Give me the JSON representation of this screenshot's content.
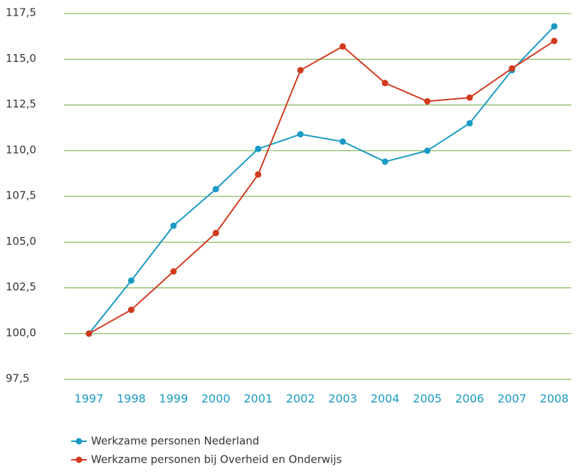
{
  "chart_data": {
    "type": "line",
    "categories": [
      "1997",
      "1998",
      "1999",
      "2000",
      "2001",
      "2002",
      "2003",
      "2004",
      "2005",
      "2006",
      "2007",
      "2008"
    ],
    "series": [
      {
        "name": "Werkzame personen Nederland",
        "color": "#1a9ac4",
        "values": [
          100.0,
          102.9,
          105.9,
          107.9,
          110.1,
          110.9,
          110.5,
          109.4,
          110.0,
          111.5,
          114.4,
          116.8
        ]
      },
      {
        "name": "Werkzame personen bij Overheid en Onderwijs",
        "color": "#d23a1e",
        "values": [
          100.0,
          101.3,
          103.4,
          105.5,
          108.7,
          114.4,
          115.7,
          113.7,
          112.7,
          112.9,
          114.5,
          116.0
        ]
      }
    ],
    "ylim": [
      97.5,
      117.5
    ],
    "yticks": [
      {
        "value": 97.5,
        "label": "97,5"
      },
      {
        "value": 100,
        "label": "100,0"
      },
      {
        "value": 102.5,
        "label": "102,5"
      },
      {
        "value": 105,
        "label": "105,0"
      },
      {
        "value": 107.5,
        "label": "107,5"
      },
      {
        "value": 110,
        "label": "110,0"
      },
      {
        "value": 112.5,
        "label": "112,5"
      },
      {
        "value": 115,
        "label": "115,0"
      },
      {
        "value": 117.5,
        "label": "117,5"
      }
    ],
    "grid": true,
    "grid_color": "#6aaa3a",
    "x_label_color": "#1a9ac4",
    "legend": "bottom"
  }
}
